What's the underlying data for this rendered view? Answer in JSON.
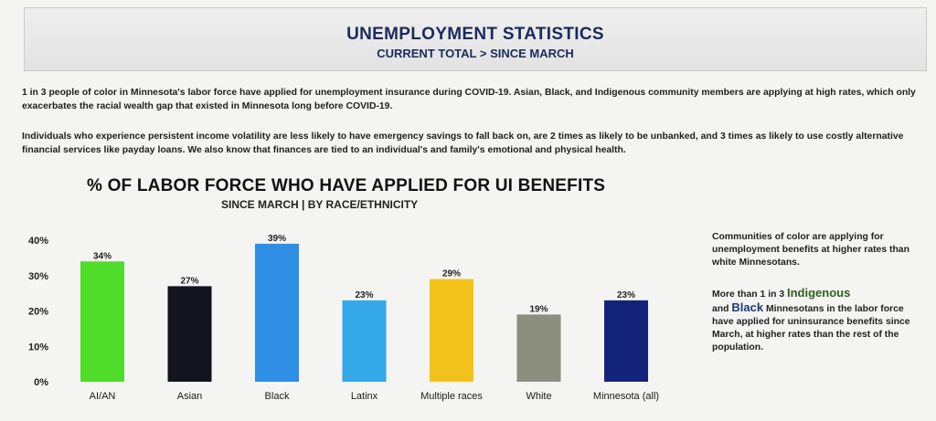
{
  "header": {
    "title": "UNEMPLOYMENT STATISTICS",
    "subtitle": "CURRENT TOTAL > SINCE MARCH"
  },
  "paragraphs": {
    "p1": "1 in 3 people of color in Minnesota's labor force have applied for unemployment insurance during COVID-19. Asian, Black, and Indigenous community members are applying at high rates, which only exacerbates the racial wealth gap that existed in Minnesota long before COVID-19.",
    "p2": "Individuals who experience persistent income volatility are less likely to have emergency savings to fall back on, are 2 times as likely to be unbanked, and 3 times as likely to use costly alternative financial services like payday loans. We also know that finances are tied to an individual's and family's emotional and physical health."
  },
  "side_notes": {
    "note1": "Communities of color are applying for unemployment benefits at higher rates than white Minnesotans.",
    "note2_prefix": "More than 1 in 3",
    "note2_word1": "Indigenous",
    "note2_and": "and",
    "note2_word2": "Black",
    "note2_suffix": "Minnesotans in the labor force have applied for uninsurance benefits since March, at higher rates than the rest of the population."
  },
  "chart_data": {
    "type": "bar",
    "title": "% OF LABOR FORCE WHO HAVE APPLIED FOR UI BENEFITS",
    "subtitle": "SINCE MARCH | BY RACE/ETHNICITY",
    "categories": [
      "AI/AN",
      "Asian",
      "Black",
      "Latinx",
      "Multiple races",
      "White",
      "Minnesota (all)"
    ],
    "values": [
      34,
      27,
      39,
      23,
      29,
      19,
      23
    ],
    "value_labels": [
      "34%",
      "27%",
      "39%",
      "23%",
      "29%",
      "19%",
      "23%"
    ],
    "colors": [
      "#4fdc2a",
      "#141420",
      "#2f8fe6",
      "#35a8e8",
      "#f3c21a",
      "#8c8f7e",
      "#14237a"
    ],
    "y_ticks": [
      0,
      10,
      20,
      30,
      40
    ],
    "y_tick_labels": [
      "0%",
      "10%",
      "20%",
      "30%",
      "40%"
    ],
    "ylim": [
      0,
      40
    ],
    "grid": false,
    "legend": "none"
  }
}
